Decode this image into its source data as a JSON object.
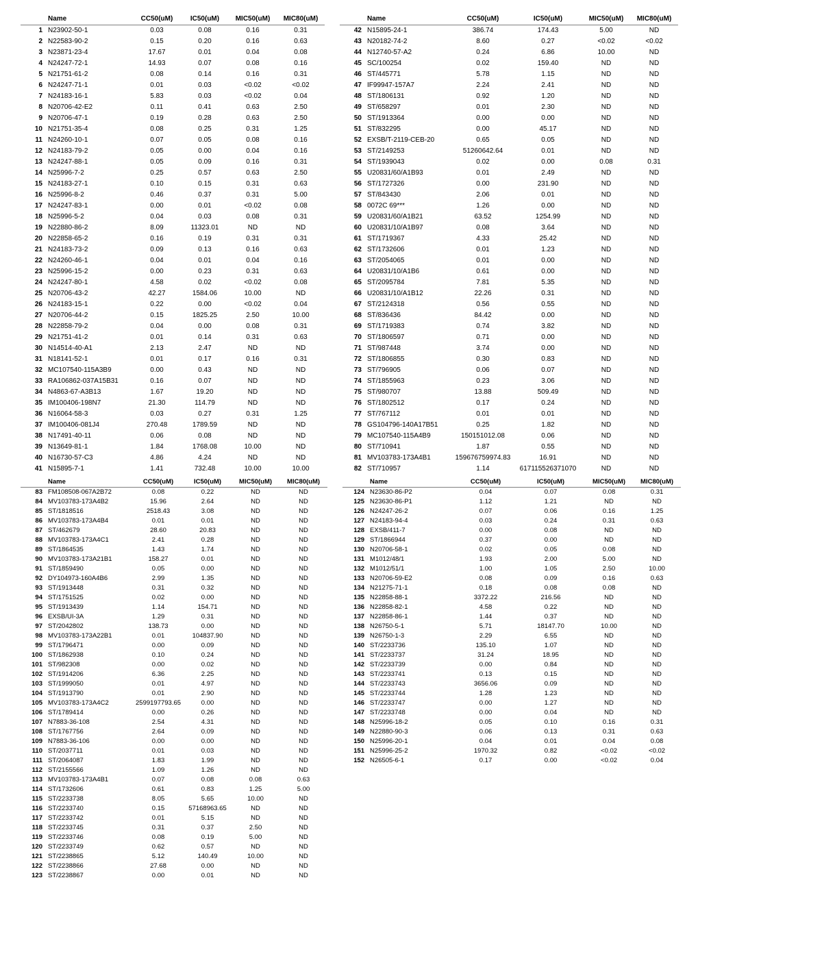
{
  "colors": {
    "text": "#000000",
    "rule": "#7f7f7f",
    "bg": "#ffffff"
  },
  "fonts": {
    "family": "Arial",
    "size_pt": 7.5,
    "header_weight": "bold"
  },
  "columns": [
    "Name",
    "CC50(uM)",
    "IC50(uM)",
    "MIC50(uM)",
    "MIC80(uM)"
  ],
  "block1": {
    "left": [
      [
        "1",
        "N23902-50-1",
        "0.03",
        "0.08",
        "0.16",
        "0.31"
      ],
      [
        "2",
        "N22583-90-2",
        "0.15",
        "0.20",
        "0.16",
        "0.63"
      ],
      [
        "3",
        "N23871-23-4",
        "17.67",
        "0.01",
        "0.04",
        "0.08"
      ],
      [
        "4",
        "N24247-72-1",
        "14.93",
        "0.07",
        "0.08",
        "0.16"
      ],
      [
        "5",
        "N21751-61-2",
        "0.08",
        "0.14",
        "0.16",
        "0.31"
      ],
      [
        "6",
        "N24247-71-1",
        "0.01",
        "0.03",
        "<0.02",
        "<0.02"
      ],
      [
        "7",
        "N24183-16-1",
        "5.83",
        "0.03",
        "<0.02",
        "0.04"
      ],
      [
        "8",
        "N20706-42-E2",
        "0.11",
        "0.41",
        "0.63",
        "2.50"
      ],
      [
        "9",
        "N20706-47-1",
        "0.19",
        "0.28",
        "0.63",
        "2.50"
      ],
      [
        "10",
        "N21751-35-4",
        "0.08",
        "0.25",
        "0.31",
        "1.25"
      ],
      [
        "11",
        "N24260-10-1",
        "0.07",
        "0.05",
        "0.08",
        "0.16"
      ],
      [
        "12",
        "N24183-79-2",
        "0.05",
        "0.00",
        "0.04",
        "0.16"
      ],
      [
        "13",
        "N24247-88-1",
        "0.05",
        "0.09",
        "0.16",
        "0.31"
      ],
      [
        "14",
        "N25996-7-2",
        "0.25",
        "0.57",
        "0.63",
        "2.50"
      ],
      [
        "15",
        "N24183-27-1",
        "0.10",
        "0.15",
        "0.31",
        "0.63"
      ],
      [
        "16",
        "N25996-8-2",
        "0.46",
        "0.37",
        "0.31",
        "5.00"
      ],
      [
        "17",
        "N24247-83-1",
        "0.00",
        "0.01",
        "<0.02",
        "0.08"
      ],
      [
        "18",
        "N25996-5-2",
        "0.04",
        "0.03",
        "0.08",
        "0.31"
      ],
      [
        "19",
        "N22880-86-2",
        "8.09",
        "11323.01",
        "ND",
        "ND"
      ],
      [
        "20",
        "N22858-65-2",
        "0.16",
        "0.19",
        "0.31",
        "0.31"
      ],
      [
        "21",
        "N24183-73-2",
        "0.09",
        "0.13",
        "0.16",
        "0.63"
      ],
      [
        "22",
        "N24260-46-1",
        "0.04",
        "0.01",
        "0.04",
        "0.16"
      ],
      [
        "23",
        "N25996-15-2",
        "0.00",
        "0.23",
        "0.31",
        "0.63"
      ],
      [
        "24",
        "N24247-80-1",
        "4.58",
        "0.02",
        "<0.02",
        "0.08"
      ],
      [
        "25",
        "N20706-43-2",
        "42.27",
        "1584.06",
        "10.00",
        "ND"
      ],
      [
        "26",
        "N24183-15-1",
        "0.22",
        "0.00",
        "<0.02",
        "0.04"
      ],
      [
        "27",
        "N20706-44-2",
        "0.15",
        "1825.25",
        "2.50",
        "10.00"
      ],
      [
        "28",
        "N22858-79-2",
        "0.04",
        "0.00",
        "0.08",
        "0.31"
      ],
      [
        "29",
        "N21751-41-2",
        "0.01",
        "0.14",
        "0.31",
        "0.63"
      ],
      [
        "30",
        "N14514-40-A1",
        "2.13",
        "2.47",
        "ND",
        "ND"
      ],
      [
        "31",
        "N18141-52-1",
        "0.01",
        "0.17",
        "0.16",
        "0.31"
      ],
      [
        "32",
        "MC107540-115A3B9",
        "0.00",
        "0.43",
        "ND",
        "ND"
      ],
      [
        "33",
        "RA106862-037A15B31",
        "0.16",
        "0.07",
        "ND",
        "ND"
      ],
      [
        "34",
        "N4863-67-A3B13",
        "1.67",
        "19.20",
        "ND",
        "ND"
      ],
      [
        "35",
        "IM100406-198N7",
        "21.30",
        "114.79",
        "ND",
        "ND"
      ],
      [
        "36",
        "N16064-58-3",
        "0.03",
        "0.27",
        "0.31",
        "1.25"
      ],
      [
        "37",
        "IM100406-081J4",
        "270.48",
        "1789.59",
        "ND",
        "ND"
      ],
      [
        "38",
        "N17491-40-11",
        "0.06",
        "0.08",
        "ND",
        "ND"
      ],
      [
        "39",
        "N13649-81-1",
        "1.84",
        "1768.08",
        "10.00",
        "ND"
      ],
      [
        "40",
        "N16730-57-C3",
        "4.86",
        "4.24",
        "ND",
        "ND"
      ],
      [
        "41",
        "N15895-7-1",
        "1.41",
        "732.48",
        "10.00",
        "10.00"
      ]
    ],
    "right": [
      [
        "42",
        "N15895-24-1",
        "386.74",
        "174.43",
        "5.00",
        "ND"
      ],
      [
        "43",
        "N20182-74-2",
        "8.60",
        "0.27",
        "<0.02",
        "<0.02"
      ],
      [
        "44",
        "N12740-57-A2",
        "0.24",
        "6.86",
        "10.00",
        "ND"
      ],
      [
        "45",
        "SC/100254",
        "0.02",
        "159.40",
        "ND",
        "ND"
      ],
      [
        "46",
        "ST/445771",
        "5.78",
        "1.15",
        "ND",
        "ND"
      ],
      [
        "47",
        "IF99947-157A7",
        "2.24",
        "2.41",
        "ND",
        "ND"
      ],
      [
        "48",
        "ST/1806131",
        "0.92",
        "1.20",
        "ND",
        "ND"
      ],
      [
        "49",
        "ST/658297",
        "0.01",
        "2.30",
        "ND",
        "ND"
      ],
      [
        "50",
        "ST/1913364",
        "0.00",
        "0.00",
        "ND",
        "ND"
      ],
      [
        "51",
        "ST/832295",
        "0.00",
        "45.17",
        "ND",
        "ND"
      ],
      [
        "52",
        "EXSB/T-2119-CEB-20",
        "0.65",
        "0.05",
        "ND",
        "ND"
      ],
      [
        "53",
        "ST/2149253",
        "51260642.64",
        "0.01",
        "ND",
        "ND"
      ],
      [
        "54",
        "ST/1939043",
        "0.02",
        "0.00",
        "0.08",
        "0.31"
      ],
      [
        "55",
        "U20831/60/A1B93",
        "0.01",
        "2.49",
        "ND",
        "ND"
      ],
      [
        "56",
        "ST/1727326",
        "0.00",
        "231.90",
        "ND",
        "ND"
      ],
      [
        "57",
        "ST/843430",
        "2.06",
        "0.01",
        "ND",
        "ND"
      ],
      [
        "58",
        "0072C 69***",
        "1.26",
        "0.00",
        "ND",
        "ND"
      ],
      [
        "59",
        "U20831/60/A1B21",
        "63.52",
        "1254.99",
        "ND",
        "ND"
      ],
      [
        "60",
        "U20831/10/A1B97",
        "0.08",
        "3.64",
        "ND",
        "ND"
      ],
      [
        "61",
        "ST/1719367",
        "4.33",
        "25.42",
        "ND",
        "ND"
      ],
      [
        "62",
        "ST/1732606",
        "0.01",
        "1.23",
        "ND",
        "ND"
      ],
      [
        "63",
        "ST/2054065",
        "0.01",
        "0.00",
        "ND",
        "ND"
      ],
      [
        "64",
        "U20831/10/A1B6",
        "0.61",
        "0.00",
        "ND",
        "ND"
      ],
      [
        "65",
        "ST/2095784",
        "7.81",
        "5.35",
        "ND",
        "ND"
      ],
      [
        "66",
        "U20831/10/A1B12",
        "22.26",
        "0.31",
        "ND",
        "ND"
      ],
      [
        "67",
        "ST/2124318",
        "0.56",
        "0.55",
        "ND",
        "ND"
      ],
      [
        "68",
        "ST/836436",
        "84.42",
        "0.00",
        "ND",
        "ND"
      ],
      [
        "69",
        "ST/1719383",
        "0.74",
        "3.82",
        "ND",
        "ND"
      ],
      [
        "70",
        "ST/1806597",
        "0.71",
        "0.00",
        "ND",
        "ND"
      ],
      [
        "71",
        "ST/987448",
        "3.74",
        "0.00",
        "ND",
        "ND"
      ],
      [
        "72",
        "ST/1806855",
        "0.30",
        "0.83",
        "ND",
        "ND"
      ],
      [
        "73",
        "ST/796905",
        "0.06",
        "0.07",
        "ND",
        "ND"
      ],
      [
        "74",
        "ST/1855963",
        "0.23",
        "3.06",
        "ND",
        "ND"
      ],
      [
        "75",
        "ST/980707",
        "13.88",
        "509.49",
        "ND",
        "ND"
      ],
      [
        "76",
        "ST/1802512",
        "0.17",
        "0.24",
        "ND",
        "ND"
      ],
      [
        "77",
        "ST/767112",
        "0.01",
        "0.01",
        "ND",
        "ND"
      ],
      [
        "78",
        "GS104796-140A17B51",
        "0.25",
        "1.82",
        "ND",
        "ND"
      ],
      [
        "79",
        "MC107540-115A4B9",
        "150151012.08",
        "0.06",
        "ND",
        "ND"
      ],
      [
        "80",
        "ST/710941",
        "1.87",
        "0.55",
        "ND",
        "ND"
      ],
      [
        "81",
        "MV103783-173A4B1",
        "159676759974.83",
        "16.91",
        "ND",
        "ND"
      ],
      [
        "82",
        "ST/710957",
        "1.14",
        "617115526371070",
        "ND",
        "ND"
      ]
    ]
  },
  "block2": {
    "left": [
      [
        "83",
        "FM108508-067A2B72",
        "0.08",
        "0.22",
        "ND",
        "ND"
      ],
      [
        "84",
        "MV103783-173A4B2",
        "15.96",
        "2.64",
        "ND",
        "ND"
      ],
      [
        "85",
        "ST/1818516",
        "2518.43",
        "3.08",
        "ND",
        "ND"
      ],
      [
        "86",
        "MV103783-173A4B4",
        "0.01",
        "0.01",
        "ND",
        "ND"
      ],
      [
        "87",
        "ST/462679",
        "28.60",
        "20.83",
        "ND",
        "ND"
      ],
      [
        "88",
        "MV103783-173A4C1",
        "2.41",
        "0.28",
        "ND",
        "ND"
      ],
      [
        "89",
        "ST/1864535",
        "1.43",
        "1.74",
        "ND",
        "ND"
      ],
      [
        "90",
        "MV103783-173A21B1",
        "158.27",
        "0.01",
        "ND",
        "ND"
      ],
      [
        "91",
        "ST/1859490",
        "0.05",
        "0.00",
        "ND",
        "ND"
      ],
      [
        "92",
        "DY104973-160A4B6",
        "2.99",
        "1.35",
        "ND",
        "ND"
      ],
      [
        "93",
        "ST/1913448",
        "0.31",
        "0.32",
        "ND",
        "ND"
      ],
      [
        "94",
        "ST/1751525",
        "0.02",
        "0.00",
        "ND",
        "ND"
      ],
      [
        "95",
        "ST/1913439",
        "1.14",
        "154.71",
        "ND",
        "ND"
      ],
      [
        "96",
        "EXSB/UI-3A",
        "1.29",
        "0.31",
        "ND",
        "ND"
      ],
      [
        "97",
        "ST/2042802",
        "138.73",
        "0.00",
        "ND",
        "ND"
      ],
      [
        "98",
        "MV103783-173A22B1",
        "0.01",
        "104837.90",
        "ND",
        "ND"
      ],
      [
        "99",
        "ST/1796471",
        "0.00",
        "0.09",
        "ND",
        "ND"
      ],
      [
        "100",
        "ST/1862938",
        "0.10",
        "0.24",
        "ND",
        "ND"
      ],
      [
        "101",
        "ST/982308",
        "0.00",
        "0.02",
        "ND",
        "ND"
      ],
      [
        "102",
        "ST/1914206",
        "6.36",
        "2.25",
        "ND",
        "ND"
      ],
      [
        "103",
        "ST/1999050",
        "0.01",
        "4.97",
        "ND",
        "ND"
      ],
      [
        "104",
        "ST/1913790",
        "0.01",
        "2.90",
        "ND",
        "ND"
      ],
      [
        "105",
        "MV103783-173A4C2",
        "2599197793.65",
        "0.00",
        "ND",
        "ND"
      ],
      [
        "106",
        "ST/1789414",
        "0.00",
        "0.26",
        "ND",
        "ND"
      ],
      [
        "107",
        "N7883-36-108",
        "2.54",
        "4.31",
        "ND",
        "ND"
      ],
      [
        "108",
        "ST/1767756",
        "2.64",
        "0.09",
        "ND",
        "ND"
      ],
      [
        "109",
        "N7883-36-106",
        "0.00",
        "0.00",
        "ND",
        "ND"
      ],
      [
        "110",
        "ST/2037711",
        "0.01",
        "0.03",
        "ND",
        "ND"
      ],
      [
        "111",
        "ST/2064087",
        "1.83",
        "1.99",
        "ND",
        "ND"
      ],
      [
        "112",
        "ST/2155566",
        "1.09",
        "1.26",
        "ND",
        "ND"
      ],
      [
        "113",
        "MV103783-173A4B1",
        "0.07",
        "0.08",
        "0.08",
        "0.63"
      ],
      [
        "114",
        "ST/1732606",
        "0.61",
        "0.83",
        "1.25",
        "5.00"
      ],
      [
        "115",
        "ST/2233738",
        "8.05",
        "5.65",
        "10.00",
        "ND"
      ],
      [
        "116",
        "ST/2233740",
        "0.15",
        "57168963.65",
        "ND",
        "ND"
      ],
      [
        "117",
        "ST/2233742",
        "0.01",
        "5.15",
        "ND",
        "ND"
      ],
      [
        "118",
        "ST/2233745",
        "0.31",
        "0.37",
        "2.50",
        "ND"
      ],
      [
        "119",
        "ST/2233746",
        "0.08",
        "0.19",
        "5.00",
        "ND"
      ],
      [
        "120",
        "ST/2233749",
        "0.62",
        "0.57",
        "ND",
        "ND"
      ],
      [
        "121",
        "ST/2238865",
        "5.12",
        "140.49",
        "10.00",
        "ND"
      ],
      [
        "122",
        "ST/2238866",
        "27.68",
        "0.00",
        "ND",
        "ND"
      ],
      [
        "123",
        "ST/2238867",
        "0.00",
        "0.01",
        "ND",
        "ND"
      ]
    ],
    "right": [
      [
        "124",
        "N23630-86-P2",
        "0.04",
        "0.07",
        "0.08",
        "0.31"
      ],
      [
        "125",
        "N23630-86-P1",
        "1.12",
        "1.21",
        "ND",
        "ND"
      ],
      [
        "126",
        "N24247-26-2",
        "0.07",
        "0.06",
        "0.16",
        "1.25"
      ],
      [
        "127",
        "N24183-94-4",
        "0.03",
        "0.24",
        "0.31",
        "0.63"
      ],
      [
        "128",
        "EXSB/411-7",
        "0.00",
        "0.08",
        "ND",
        "ND"
      ],
      [
        "129",
        "ST/1866944",
        "0.37",
        "0.00",
        "ND",
        "ND"
      ],
      [
        "130",
        "N20706-58-1",
        "0.02",
        "0.05",
        "0.08",
        "ND"
      ],
      [
        "131",
        "M1012/48/1",
        "1.93",
        "2.00",
        "5.00",
        "ND"
      ],
      [
        "132",
        "M1012/51/1",
        "1.00",
        "1.05",
        "2.50",
        "10.00"
      ],
      [
        "133",
        "N20706-59-E2",
        "0.08",
        "0.09",
        "0.16",
        "0.63"
      ],
      [
        "134",
        "N21275-71-1",
        "0.18",
        "0.08",
        "0.08",
        "ND"
      ],
      [
        "135",
        "N22858-88-1",
        "3372.22",
        "216.56",
        "ND",
        "ND"
      ],
      [
        "136",
        "N22858-82-1",
        "4.58",
        "0.22",
        "ND",
        "ND"
      ],
      [
        "137",
        "N22858-86-1",
        "1.44",
        "0.37",
        "ND",
        "ND"
      ],
      [
        "138",
        "N26750-5-1",
        "5.71",
        "18147.70",
        "10.00",
        "ND"
      ],
      [
        "139",
        "N26750-1-3",
        "2.29",
        "6.55",
        "ND",
        "ND"
      ],
      [
        "140",
        "ST/2233736",
        "135.10",
        "1.07",
        "ND",
        "ND"
      ],
      [
        "141",
        "ST/2233737",
        "31.24",
        "18.95",
        "ND",
        "ND"
      ],
      [
        "142",
        "ST/2233739",
        "0.00",
        "0.84",
        "ND",
        "ND"
      ],
      [
        "143",
        "ST/2233741",
        "0.13",
        "0.15",
        "ND",
        "ND"
      ],
      [
        "144",
        "ST/2233743",
        "3656.06",
        "0.09",
        "ND",
        "ND"
      ],
      [
        "145",
        "ST/2233744",
        "1.28",
        "1.23",
        "ND",
        "ND"
      ],
      [
        "146",
        "ST/2233747",
        "0.00",
        "1.27",
        "ND",
        "ND"
      ],
      [
        "147",
        "ST/2233748",
        "0.00",
        "0.04",
        "ND",
        "ND"
      ],
      [
        "148",
        "N25996-18-2",
        "0.05",
        "0.10",
        "0.16",
        "0.31"
      ],
      [
        "149",
        "N22880-90-3",
        "0.06",
        "0.13",
        "0.31",
        "0.63"
      ],
      [
        "150",
        "N25996-20-1",
        "0.04",
        "0.01",
        "0.04",
        "0.08"
      ],
      [
        "151",
        "N25996-25-2",
        "1970.32",
        "0.82",
        "<0.02",
        "<0.02"
      ],
      [
        "152",
        "N26505-6-1",
        "0.17",
        "0.00",
        "<0.02",
        "0.04"
      ]
    ]
  }
}
